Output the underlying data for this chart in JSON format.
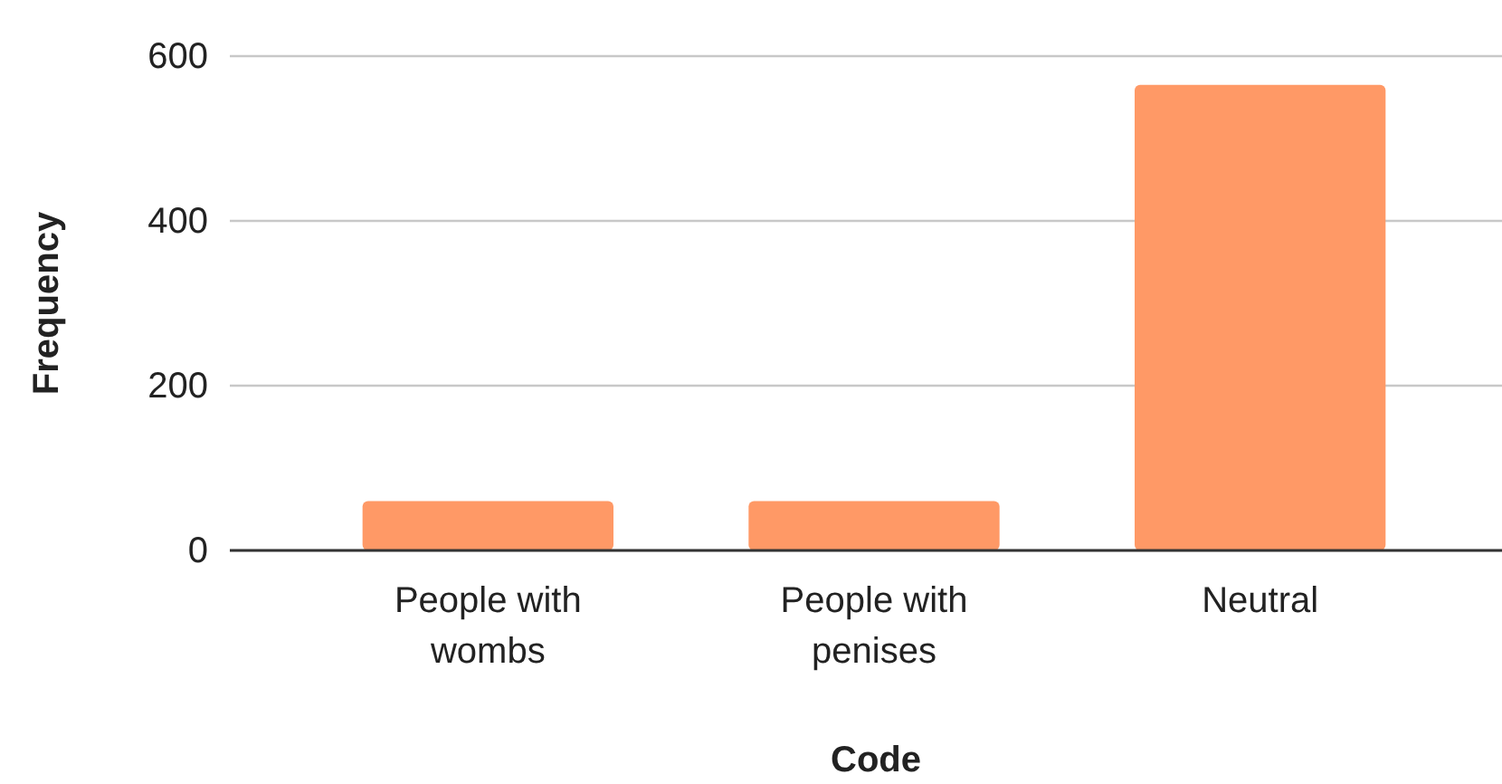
{
  "chart_data": {
    "type": "bar",
    "xlabel": "Code",
    "ylabel": "Frequency",
    "categories": [
      "People with wombs",
      "People with penises",
      "Neutral"
    ],
    "values": [
      60,
      60,
      565
    ],
    "color": "#ff9966",
    "ylim": [
      0,
      600
    ],
    "yticks": [
      0,
      200,
      400,
      600
    ],
    "grid": "y"
  }
}
